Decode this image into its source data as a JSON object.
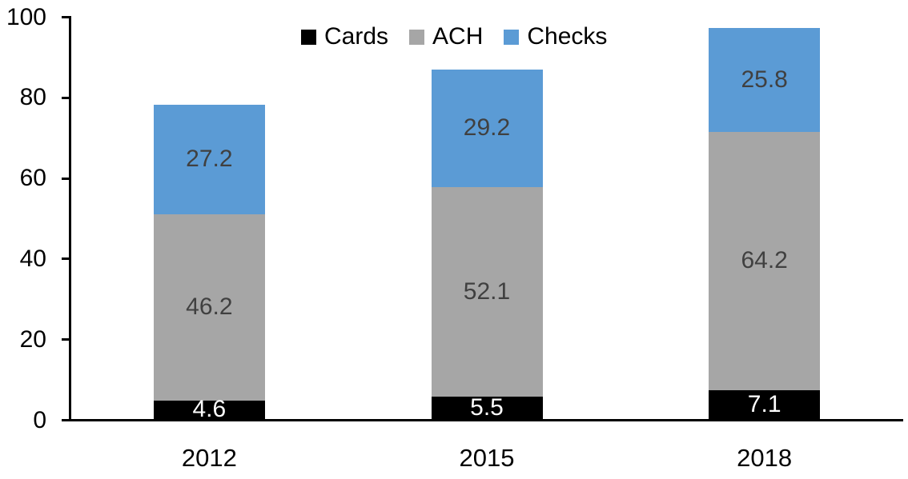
{
  "chart_data": {
    "type": "bar",
    "variant": "stacked-column",
    "title": "",
    "categories": [
      "2012",
      "2015",
      "2018"
    ],
    "series": [
      {
        "name": "Cards",
        "color": "#000000",
        "label_color": "#ffffff",
        "values": [
          4.6,
          5.5,
          7.1
        ]
      },
      {
        "name": "ACH",
        "color": "#a6a6a6",
        "label_color": "#404040",
        "values": [
          46.2,
          52.1,
          64.2
        ]
      },
      {
        "name": "Checks",
        "color": "#5b9bd5",
        "label_color": "#404040",
        "values": [
          27.2,
          29.2,
          25.8
        ]
      }
    ],
    "xlabel": "",
    "ylabel": "",
    "ylim": [
      0,
      100
    ],
    "yticks": [
      0,
      20,
      40,
      60,
      80,
      100
    ],
    "grid": false,
    "legend_position": "top",
    "axis_color": "#000000"
  }
}
